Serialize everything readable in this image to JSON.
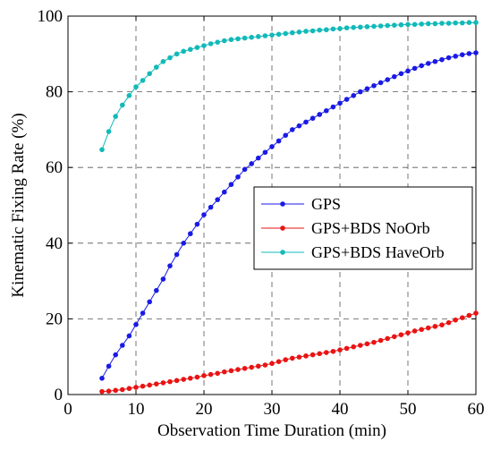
{
  "chart_data": {
    "type": "line",
    "title": "",
    "xlabel": "Observation Time Duration (min)",
    "ylabel": "Kinematic Fixing Rate (%)",
    "xlim": [
      0,
      60
    ],
    "ylim": [
      0,
      100
    ],
    "xticks": [
      0,
      10,
      20,
      30,
      40,
      50,
      60
    ],
    "yticks": [
      0,
      20,
      40,
      60,
      80,
      100
    ],
    "grid": true,
    "grid_style": "dashed",
    "legend_position": "center-right",
    "x": [
      5,
      6,
      7,
      8,
      9,
      10,
      11,
      12,
      13,
      14,
      15,
      16,
      17,
      18,
      19,
      20,
      21,
      22,
      23,
      24,
      25,
      26,
      27,
      28,
      29,
      30,
      31,
      32,
      33,
      34,
      35,
      36,
      37,
      38,
      39,
      40,
      41,
      42,
      43,
      44,
      45,
      46,
      47,
      48,
      49,
      50,
      51,
      52,
      53,
      54,
      55,
      56,
      57,
      58,
      59,
      60
    ],
    "series": [
      {
        "name": "GPS",
        "color": "#1a1ae6",
        "values": [
          4.3,
          7.5,
          10.5,
          13.0,
          15.5,
          18.5,
          21.5,
          24.5,
          27.5,
          30.5,
          34.0,
          37.0,
          40.0,
          42.5,
          45.0,
          47.5,
          49.5,
          51.5,
          53.5,
          55.5,
          57.5,
          59.5,
          61.0,
          62.5,
          64.0,
          65.5,
          67.0,
          68.5,
          70.0,
          71.0,
          72.0,
          73.0,
          74.0,
          75.0,
          76.0,
          77.0,
          78.0,
          79.0,
          80.0,
          80.8,
          81.6,
          82.4,
          83.2,
          84.0,
          84.8,
          85.5,
          86.2,
          86.9,
          87.5,
          88.0,
          88.5,
          89.0,
          89.4,
          89.8,
          90.1,
          90.3
        ]
      },
      {
        "name": "GPS+BDS NoOrb",
        "color": "#e81414",
        "values": [
          0.8,
          0.9,
          1.1,
          1.3,
          1.6,
          1.9,
          2.2,
          2.5,
          2.8,
          3.1,
          3.4,
          3.7,
          4.0,
          4.3,
          4.6,
          5.0,
          5.3,
          5.6,
          6.0,
          6.3,
          6.6,
          6.9,
          7.2,
          7.5,
          7.8,
          8.2,
          8.7,
          9.2,
          9.6,
          9.9,
          10.2,
          10.5,
          10.8,
          11.1,
          11.4,
          11.8,
          12.2,
          12.6,
          13.0,
          13.4,
          13.8,
          14.3,
          14.8,
          15.3,
          15.8,
          16.3,
          16.8,
          17.2,
          17.6,
          18.0,
          18.4,
          19.0,
          19.7,
          20.3,
          20.9,
          21.5
        ]
      },
      {
        "name": "GPS+BDS HaveOrb",
        "color": "#12b9b9",
        "values": [
          64.7,
          69.5,
          73.5,
          76.5,
          79.0,
          81.3,
          83.0,
          84.8,
          86.5,
          88.0,
          89.0,
          90.0,
          90.7,
          91.2,
          91.7,
          92.2,
          92.7,
          93.1,
          93.5,
          93.8,
          94.0,
          94.2,
          94.4,
          94.6,
          94.8,
          95.0,
          95.2,
          95.4,
          95.6,
          95.8,
          96.0,
          96.1,
          96.3,
          96.4,
          96.6,
          96.7,
          96.9,
          97.0,
          97.1,
          97.2,
          97.3,
          97.4,
          97.5,
          97.6,
          97.7,
          97.8,
          97.8,
          97.9,
          98.0,
          98.0,
          98.1,
          98.1,
          98.2,
          98.2,
          98.3,
          98.3
        ]
      }
    ]
  }
}
